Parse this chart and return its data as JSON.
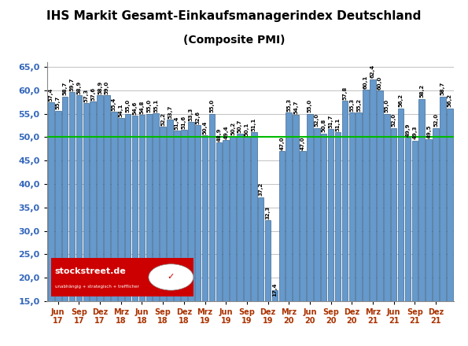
{
  "title": "IHS Markit Gesamt-Einkaufsmanagerindex Deutschland",
  "subtitle": "(Composite PMI)",
  "ylim": [
    15,
    66
  ],
  "yticks": [
    15,
    20,
    25,
    30,
    35,
    40,
    45,
    50,
    55,
    60,
    65
  ],
  "hline_y": 50,
  "hline_color": "#00BB00",
  "bar_color_face": "#6699CC",
  "bar_color_edge": "#1F4E79",
  "background_color": "#FFFFFF",
  "plot_bg_color": "#FFFFFF",
  "values": [
    57.4,
    55.7,
    58.7,
    59.7,
    58.9,
    57.3,
    57.6,
    58.9,
    59.0,
    55.4,
    54.1,
    55.0,
    54.6,
    54.8,
    55.0,
    55.1,
    52.2,
    53.7,
    51.4,
    51.6,
    53.3,
    52.6,
    50.4,
    55.0,
    48.9,
    49.4,
    50.2,
    50.7,
    50.1,
    51.1,
    37.2,
    32.3,
    17.4,
    47.0,
    55.3,
    54.7,
    47.0,
    55.0,
    52.0,
    50.8,
    51.7,
    51.1,
    57.8,
    55.3,
    55.2,
    60.1,
    62.4,
    60.0,
    55.0,
    52.0,
    56.2,
    49.9,
    49.3,
    58.2,
    49.5,
    52.0,
    58.7,
    56.2
  ],
  "labels": [
    "57,4",
    "55,7",
    "58,7",
    "59,7",
    "58,9",
    "57,3",
    "57,6",
    "58,9",
    "59,0",
    "55,4",
    "54,1",
    "55,0",
    "54,6",
    "54,8",
    "55,0",
    "55,1",
    "52,2",
    "53,7",
    "51,4",
    "51,6",
    "53,3",
    "52,6",
    "50,4",
    "55,0",
    "48,9",
    "49,4",
    "50,2",
    "50,7",
    "50,1",
    "51,1",
    "37,2",
    "32,3",
    "17,4",
    "47,0",
    "55,3",
    "54,7",
    "47,0",
    "55,0",
    "52,0",
    "50,8",
    "51,7",
    "51,1",
    "57,8",
    "55,3",
    "55,2",
    "60,1",
    "62,4",
    "60,0",
    "55,0",
    "52,0",
    "56,2",
    "49,9",
    "49,3",
    "58,2",
    "49,5",
    "52,0",
    "58,7",
    "56,2"
  ],
  "xtick_positions": [
    1,
    4,
    7,
    10,
    13,
    16,
    19,
    22,
    25,
    28,
    31,
    34,
    37,
    40,
    43,
    46,
    49,
    52,
    55
  ],
  "xtick_labels": [
    "Jun\n17",
    "Sep\n17",
    "Dez\n17",
    "Mrz\n18",
    "Jun\n18",
    "Sep\n18",
    "Dez\n18",
    "Mrz\n19",
    "Jun\n19",
    "Sep\n19",
    "Dez\n19",
    "Mrz\n20",
    "Jun\n20",
    "Sep\n20",
    "Dez\n20",
    "Mrz\n21",
    "Jun\n21",
    "Sep\n21",
    "Dez\n21"
  ],
  "stockstreet_text": "stockstreet.de",
  "label_fontsize": 5.0,
  "title_fontsize": 11,
  "subtitle_fontsize": 10,
  "tick_fontsize": 8,
  "watermark_bg": "#CC0000"
}
